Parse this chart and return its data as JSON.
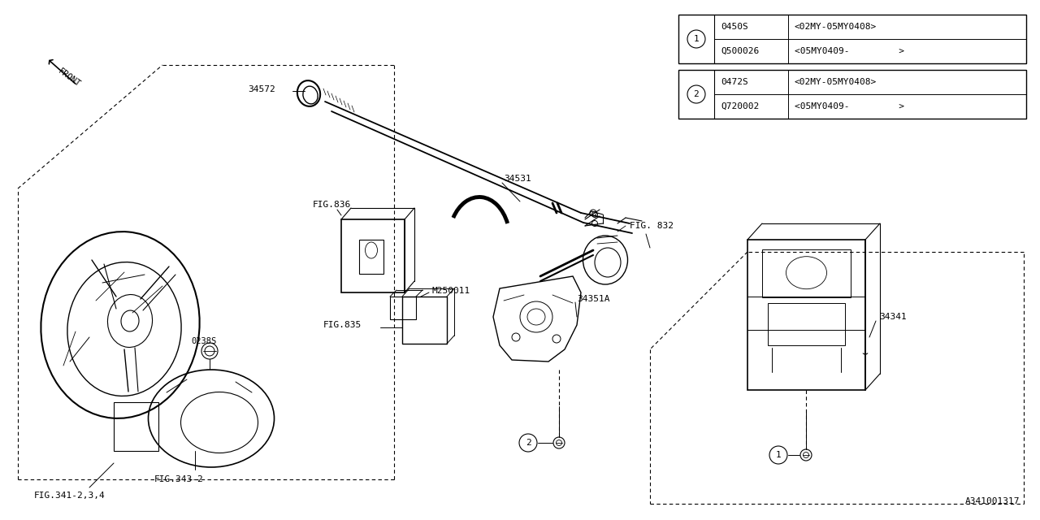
{
  "bg_color": "#ffffff",
  "lc": "#000000",
  "fig_width": 12.8,
  "fig_height": 6.4,
  "watermark": "A341001317",
  "table1": {
    "num": "1",
    "p1": "0450S",
    "r1": "<02MY-05MY0408>",
    "p2": "Q500026",
    "r2": "<05MY0409-         >"
  },
  "table2": {
    "num": "2",
    "p1": "0472S",
    "r1": "<02MY-05MY0408>",
    "p2": "Q720002",
    "r2": "<05MY0409-         >"
  }
}
